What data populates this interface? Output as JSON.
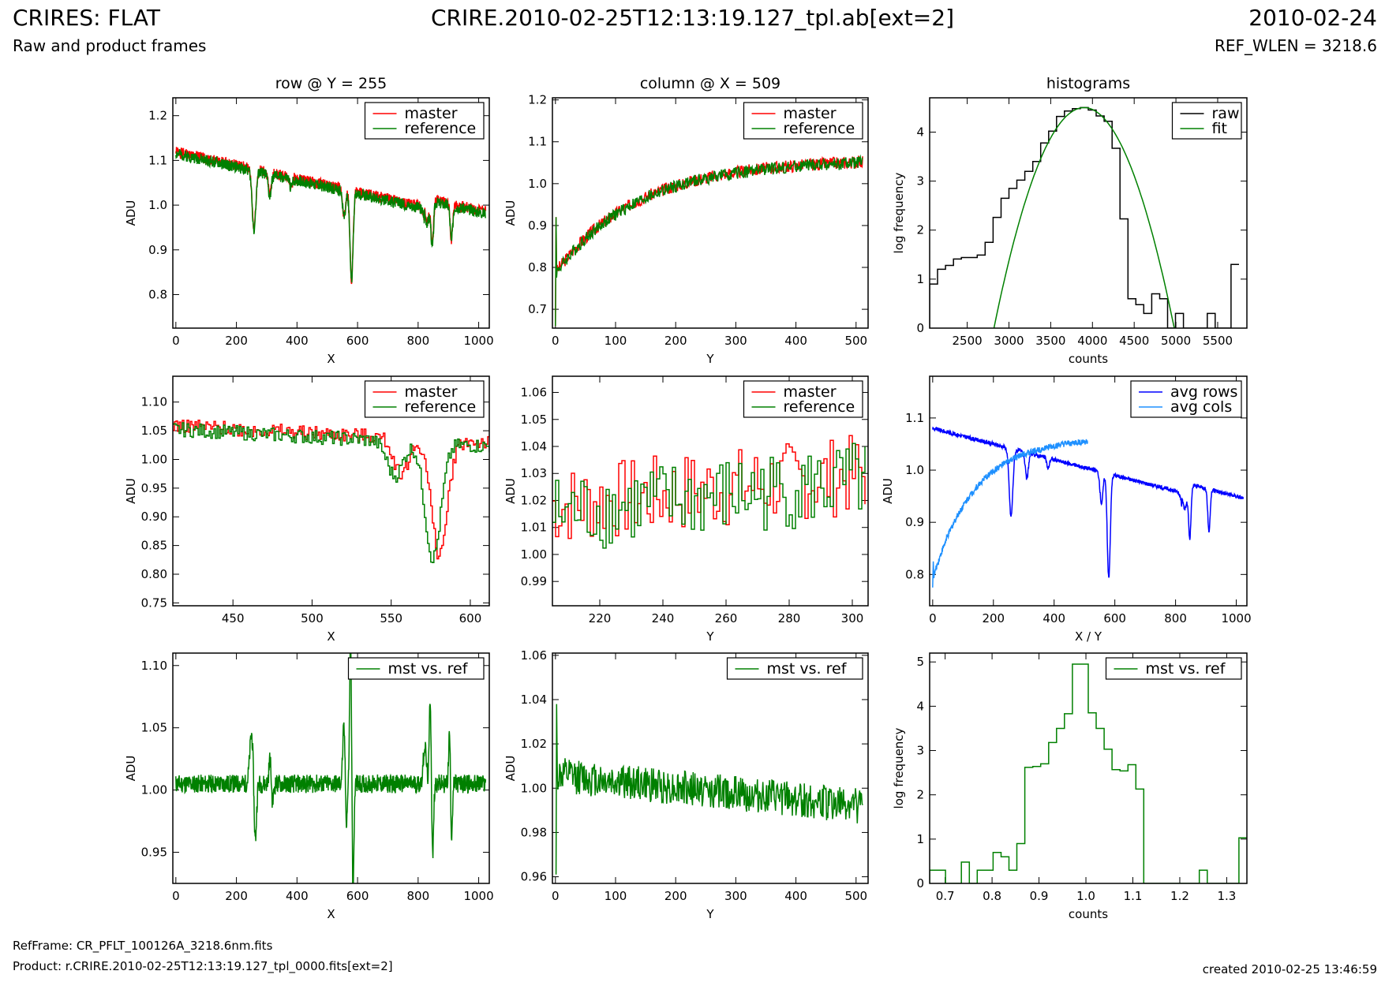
{
  "header": {
    "title": "CRIRES: FLAT",
    "subtitle": "Raw and product frames",
    "file": "CRIRE.2010-02-25T12:13:19.127_tpl.ab[ext=2]",
    "date": "2010-02-24",
    "ref_wlen": "REF_WLEN = 3218.6"
  },
  "footer": {
    "ref_frame": "RefFrame: CR_PFLT_100126A_3218.6nm.fits",
    "product": "Product: r.CRIRE.2010-02-25T12:13:19.127_tpl_0000.fits[ext=2]",
    "created": "created 2010-02-25 13:46:59"
  },
  "colors": {
    "master": "#ff0000",
    "reference": "#008000",
    "raw": "#000000",
    "fit": "#008000",
    "avg_rows": "#0000ff",
    "avg_cols": "#1e90ff"
  },
  "chart_data": [
    {
      "id": "row",
      "type": "line",
      "title": "row @ Y = 255",
      "xlabel": "X",
      "ylabel": "ADU",
      "xlim": [
        -10,
        1035
      ],
      "ylim": [
        0.725,
        1.24
      ],
      "xticks": [
        0,
        200,
        400,
        600,
        800,
        1000
      ],
      "xtick_labels": [
        "0",
        "200",
        "400",
        "600",
        "800",
        "1000"
      ],
      "yticks": [
        0.8,
        0.9,
        1.0,
        1.1,
        1.2
      ],
      "ytick_labels": [
        "0.8",
        "0.9",
        "1.0",
        "1.1",
        "1.2"
      ],
      "legend": [
        "master",
        "reference"
      ],
      "legend_position": "top-right",
      "series": [
        {
          "name": "master",
          "color": "#ff0000",
          "gen": "rowprofile",
          "offset": 0.004,
          "seed": 1
        },
        {
          "name": "reference",
          "color": "#008000",
          "gen": "rowprofile",
          "offset": 0,
          "seed": 2
        }
      ]
    },
    {
      "id": "col",
      "type": "line",
      "title": "column @ X = 509",
      "xlabel": "Y",
      "ylabel": "ADU",
      "xlim": [
        -5,
        520
      ],
      "ylim": [
        0.655,
        1.205
      ],
      "xticks": [
        0,
        100,
        200,
        300,
        400,
        500
      ],
      "xtick_labels": [
        "0",
        "100",
        "200",
        "300",
        "400",
        "500"
      ],
      "yticks": [
        0.7,
        0.8,
        0.9,
        1.0,
        1.1,
        1.2
      ],
      "ytick_labels": [
        "0.7",
        "0.8",
        "0.9",
        "1.0",
        "1.1",
        "1.2"
      ],
      "legend": [
        "master",
        "reference"
      ],
      "legend_position": "top-right",
      "series": [
        {
          "name": "master",
          "color": "#ff0000",
          "gen": "colprofile",
          "offset": 0.002,
          "seed": 3
        },
        {
          "name": "reference",
          "color": "#008000",
          "gen": "colprofile",
          "offset": 0,
          "seed": 4
        }
      ]
    },
    {
      "id": "hist",
      "type": "line",
      "title": "histograms",
      "xlabel": "counts",
      "ylabel": "log frequency",
      "xlim": [
        2050,
        5850
      ],
      "ylim": [
        0,
        4.7
      ],
      "xticks": [
        2500,
        3000,
        3500,
        4000,
        4500,
        5000,
        5500
      ],
      "xtick_labels": [
        "2500",
        "3000",
        "3500",
        "4000",
        "4500",
        "5000",
        "5500"
      ],
      "yticks": [
        0,
        1,
        2,
        3,
        4
      ],
      "ytick_labels": [
        "0",
        "1",
        "2",
        "3",
        "4"
      ],
      "legend": [
        "raw",
        "fit"
      ],
      "legend_position": "top-right",
      "raw_bins_start": 2050,
      "raw_bin_width": 95,
      "raw_values": [
        0.9,
        1.2,
        1.28,
        1.41,
        1.44,
        1.44,
        1.49,
        1.75,
        2.26,
        2.65,
        2.85,
        3.02,
        3.2,
        3.4,
        3.78,
        4.02,
        4.32,
        4.43,
        4.48,
        4.5,
        4.45,
        4.33,
        4.22,
        3.67,
        2.23,
        0.6,
        0.48,
        0.3,
        0.7,
        0.6,
        0,
        0.3,
        0,
        0,
        0,
        0.3,
        0,
        0,
        1.3
      ],
      "fit": {
        "peak_x": 3880,
        "peak_y": 4.5,
        "zero_left": 2820,
        "zero_right": 4980
      }
    },
    {
      "id": "row-zoom",
      "type": "line",
      "title": "",
      "xlabel": "X",
      "ylabel": "ADU",
      "xlim": [
        412,
        612
      ],
      "ylim": [
        0.745,
        1.145
      ],
      "xticks": [
        450,
        500,
        550,
        600
      ],
      "xtick_labels": [
        "450",
        "500",
        "550",
        "600"
      ],
      "yticks": [
        0.75,
        0.8,
        0.85,
        0.9,
        0.95,
        1.0,
        1.05,
        1.1
      ],
      "ytick_labels": [
        "0.75",
        "0.80",
        "0.85",
        "0.90",
        "0.95",
        "1.00",
        "1.05",
        "1.10"
      ],
      "legend": [
        "master",
        "reference"
      ],
      "legend_position": "top-right",
      "series": [
        {
          "name": "master",
          "color": "#ff0000",
          "gen": "rowprofile",
          "offset": 0.006,
          "shift": 0,
          "seed": 5
        },
        {
          "name": "reference",
          "color": "#008000",
          "gen": "rowprofile",
          "offset": 0,
          "shift": -4,
          "seed": 6
        }
      ]
    },
    {
      "id": "col-zoom",
      "type": "line",
      "title": "",
      "xlabel": "Y",
      "ylabel": "ADU",
      "xlim": [
        205,
        305
      ],
      "ylim": [
        0.981,
        1.066
      ],
      "xticks": [
        220,
        240,
        260,
        280,
        300
      ],
      "xtick_labels": [
        "220",
        "240",
        "260",
        "280",
        "300"
      ],
      "yticks": [
        0.99,
        1.0,
        1.01,
        1.02,
        1.03,
        1.04,
        1.05,
        1.06
      ],
      "ytick_labels": [
        "0.99",
        "1.00",
        "1.01",
        "1.02",
        "1.03",
        "1.04",
        "1.05",
        "1.06"
      ],
      "legend": [
        "master",
        "reference"
      ],
      "legend_position": "top-right",
      "series": [
        {
          "name": "master",
          "color": "#ff0000",
          "gen": "colzoom",
          "offset": 0.003,
          "seed": 7
        },
        {
          "name": "reference",
          "color": "#008000",
          "gen": "colzoom",
          "offset": 0,
          "seed": 8
        }
      ]
    },
    {
      "id": "avg",
      "type": "line",
      "title": "",
      "xlabel": "X / Y",
      "ylabel": "ADU",
      "xlim": [
        -10,
        1035
      ],
      "ylim": [
        0.74,
        1.18
      ],
      "xticks": [
        0,
        200,
        400,
        600,
        800,
        1000
      ],
      "xtick_labels": [
        "0",
        "200",
        "400",
        "600",
        "800",
        "1000"
      ],
      "yticks": [
        0.8,
        0.9,
        1.0,
        1.1
      ],
      "ytick_labels": [
        "0.8",
        "0.9",
        "1.0",
        "1.1"
      ],
      "legend": [
        "avg rows",
        "avg cols"
      ],
      "legend_position": "top-right",
      "series": [
        {
          "name": "avg rows",
          "color": "#0000ff",
          "gen": "avgrows",
          "seed": 9
        },
        {
          "name": "avg cols",
          "color": "#1e90ff",
          "gen": "avgcols",
          "seed": 10
        }
      ]
    },
    {
      "id": "ratio-row",
      "type": "line",
      "title": "",
      "xlabel": "X",
      "ylabel": "ADU",
      "xlim": [
        -10,
        1035
      ],
      "ylim": [
        0.925,
        1.11
      ],
      "xticks": [
        0,
        200,
        400,
        600,
        800,
        1000
      ],
      "xtick_labels": [
        "0",
        "200",
        "400",
        "600",
        "800",
        "1000"
      ],
      "yticks": [
        0.95,
        1.0,
        1.05,
        1.1
      ],
      "ytick_labels": [
        "0.95",
        "1.00",
        "1.05",
        "1.10"
      ],
      "legend": [
        "mst vs. ref"
      ],
      "legend_position": "top-right",
      "series": [
        {
          "name": "mst vs. ref",
          "color": "#008000",
          "gen": "ratiorow",
          "seed": 11
        }
      ]
    },
    {
      "id": "ratio-col",
      "type": "line",
      "title": "",
      "xlabel": "Y",
      "ylabel": "ADU",
      "xlim": [
        -5,
        520
      ],
      "ylim": [
        0.957,
        1.061
      ],
      "xticks": [
        0,
        100,
        200,
        300,
        400,
        500
      ],
      "xtick_labels": [
        "0",
        "100",
        "200",
        "300",
        "400",
        "500"
      ],
      "yticks": [
        0.96,
        0.98,
        1.0,
        1.02,
        1.04,
        1.06
      ],
      "ytick_labels": [
        "0.96",
        "0.98",
        "1.00",
        "1.02",
        "1.04",
        "1.06"
      ],
      "legend": [
        "mst vs. ref"
      ],
      "legend_position": "top-right",
      "series": [
        {
          "name": "mst vs. ref",
          "color": "#008000",
          "gen": "ratiocol",
          "seed": 12
        }
      ]
    },
    {
      "id": "ratio-hist",
      "type": "line",
      "title": "",
      "xlabel": "counts",
      "ylabel": "log frequency",
      "xlim": [
        0.667,
        1.343
      ],
      "ylim": [
        0,
        5.2
      ],
      "xticks": [
        0.7,
        0.8,
        0.9,
        1.0,
        1.1,
        1.2,
        1.3
      ],
      "xtick_labels": [
        "0.7",
        "0.8",
        "0.9",
        "1.0",
        "1.1",
        "1.2",
        "1.3"
      ],
      "yticks": [
        0,
        1,
        2,
        3,
        4,
        5
      ],
      "ytick_labels": [
        "0",
        "1",
        "2",
        "3",
        "4",
        "5"
      ],
      "legend": [
        "mst vs. ref"
      ],
      "legend_position": "top-right",
      "hist_bins_start": 0.667,
      "hist_bin_width": 0.0169,
      "hist_values": [
        0.3,
        0.3,
        0,
        0,
        0.48,
        0,
        0.3,
        0.3,
        0.7,
        0.6,
        0.3,
        0.9,
        2.62,
        2.64,
        2.7,
        3.18,
        3.5,
        3.83,
        4.95,
        4.95,
        3.85,
        3.5,
        3.03,
        2.57,
        2.54,
        2.68,
        2.13,
        0,
        0,
        0,
        0,
        0,
        0,
        0,
        0.3,
        0,
        0,
        0,
        0,
        1.03
      ]
    }
  ]
}
